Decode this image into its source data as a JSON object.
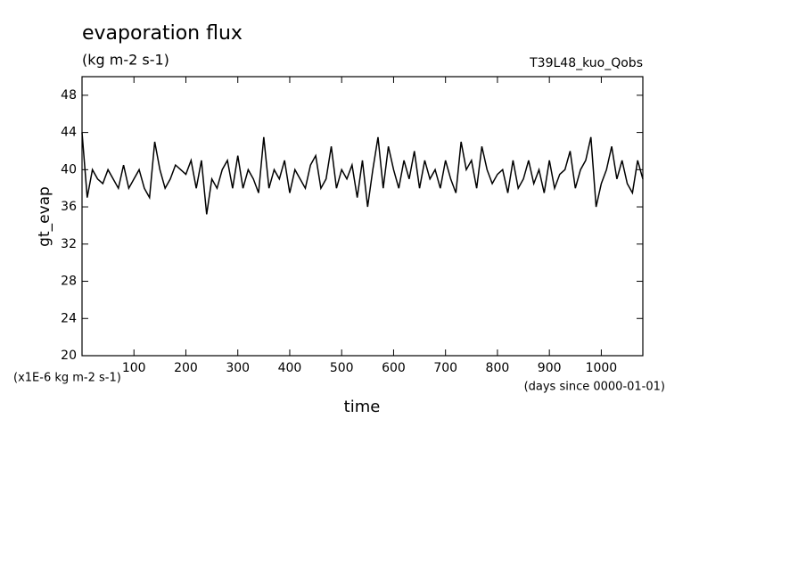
{
  "chart_data": {
    "type": "line",
    "title": "evaporation flux",
    "subtitle": "(kg m-2 s-1)",
    "annotation": "T39L48_kuo_Qobs",
    "y_label": "gt_evap",
    "x_label": "time",
    "y_units": "(x1E-6 kg m-2 s-1)",
    "x_units": "(days since 0000-01-01)",
    "color": "#000000",
    "xlim": [
      0,
      1080
    ],
    "ylim": [
      20,
      50
    ],
    "xticks": [
      100,
      200,
      300,
      400,
      500,
      600,
      700,
      800,
      900,
      1000
    ],
    "yticks": [
      20,
      24,
      28,
      32,
      36,
      40,
      44,
      48
    ],
    "x": [
      0,
      10,
      20,
      30,
      40,
      50,
      60,
      70,
      80,
      90,
      100,
      110,
      120,
      130,
      140,
      150,
      160,
      170,
      180,
      190,
      200,
      210,
      220,
      230,
      240,
      250,
      260,
      270,
      280,
      290,
      300,
      310,
      320,
      330,
      340,
      350,
      360,
      370,
      380,
      390,
      400,
      410,
      420,
      430,
      440,
      450,
      460,
      470,
      480,
      490,
      500,
      510,
      520,
      530,
      540,
      550,
      560,
      570,
      580,
      590,
      600,
      610,
      620,
      630,
      640,
      650,
      660,
      670,
      680,
      690,
      700,
      710,
      720,
      730,
      740,
      750,
      760,
      770,
      780,
      790,
      800,
      810,
      820,
      830,
      840,
      850,
      860,
      870,
      880,
      890,
      900,
      910,
      920,
      930,
      940,
      950,
      960,
      970,
      980,
      990,
      1000,
      1010,
      1020,
      1030,
      1040,
      1050,
      1060,
      1070,
      1080
    ],
    "values": [
      44,
      37,
      40,
      39,
      38.5,
      40,
      39,
      38,
      40.5,
      38,
      39,
      40,
      38,
      37,
      43,
      40,
      38,
      39,
      40.5,
      40,
      39.5,
      41,
      38,
      41,
      35.2,
      39,
      38,
      40,
      41,
      38,
      41.5,
      38,
      40,
      39,
      37.5,
      43.5,
      38,
      40,
      39,
      41,
      37.5,
      40,
      39,
      38,
      40.5,
      41.5,
      38,
      39,
      42.5,
      38,
      40,
      39,
      40.5,
      37,
      41,
      36,
      40,
      43.5,
      38,
      42.5,
      40,
      38,
      41,
      39,
      42,
      38,
      41,
      39,
      40,
      38,
      41,
      39,
      37.5,
      43,
      40,
      41,
      38,
      42.5,
      40,
      38.5,
      39.5,
      40,
      37.5,
      41,
      38,
      39,
      41,
      38.5,
      40,
      37.5,
      41,
      38,
      39.5,
      40,
      42,
      38,
      40,
      41,
      43.5,
      36,
      38.5,
      40,
      42.5,
      39,
      41,
      38.5,
      37.5,
      41,
      39
    ]
  }
}
